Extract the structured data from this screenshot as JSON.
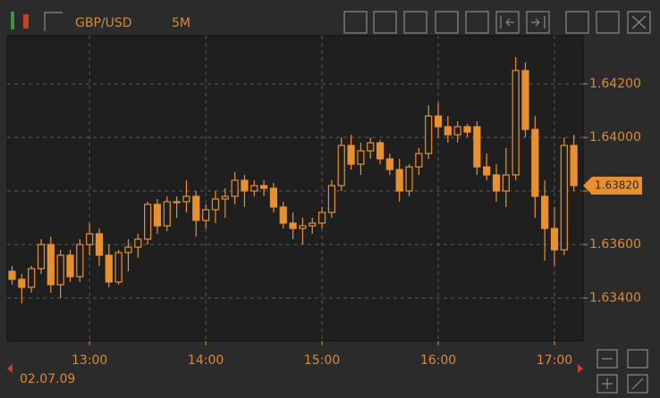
{
  "chart_data": {
    "type": "candlestick",
    "title": "GBP/USD",
    "timeframe": "5M",
    "date": "02.07.09",
    "color": "#e8902e",
    "x": [
      "12:20",
      "12:25",
      "12:30",
      "12:35",
      "12:40",
      "12:45",
      "12:50",
      "12:55",
      "13:00",
      "13:05",
      "13:10",
      "13:15",
      "13:20",
      "13:25",
      "13:30",
      "13:35",
      "13:40",
      "13:45",
      "13:50",
      "13:55",
      "14:00",
      "14:05",
      "14:10",
      "14:15",
      "14:20",
      "14:25",
      "14:30",
      "14:35",
      "14:40",
      "14:45",
      "14:50",
      "14:55",
      "15:00",
      "15:05",
      "15:10",
      "15:15",
      "15:20",
      "15:25",
      "15:30",
      "15:35",
      "15:40",
      "15:45",
      "15:50",
      "15:55",
      "16:00",
      "16:05",
      "16:10",
      "16:15",
      "16:20",
      "16:25",
      "16:30",
      "16:35",
      "16:40",
      "16:45",
      "16:50",
      "16:55",
      "17:00",
      "17:05",
      "17:10"
    ],
    "open": [
      1.635,
      1.6347,
      1.6344,
      1.6351,
      1.636,
      1.6345,
      1.6356,
      1.6348,
      1.636,
      1.6364,
      1.6356,
      1.6346,
      1.6357,
      1.6359,
      1.6362,
      1.6375,
      1.6367,
      1.6376,
      1.6376,
      1.6378,
      1.6369,
      1.6373,
      1.6377,
      1.6378,
      1.6384,
      1.638,
      1.6382,
      1.6381,
      1.6374,
      1.6368,
      1.6366,
      1.6367,
      1.6368,
      1.6372,
      1.6382,
      1.6397,
      1.639,
      1.6395,
      1.6398,
      1.6392,
      1.6388,
      1.638,
      1.6389,
      1.6394,
      1.6408,
      1.6404,
      1.6401,
      1.6404,
      1.6404,
      1.6389,
      1.6386,
      1.638,
      1.6386,
      1.6425,
      1.6403,
      1.6378,
      1.6366,
      1.6358,
      1.6397
    ],
    "high": [
      1.6352,
      1.6349,
      1.6352,
      1.6362,
      1.6363,
      1.6358,
      1.6358,
      1.6362,
      1.6368,
      1.6366,
      1.636,
      1.6358,
      1.6362,
      1.6364,
      1.6376,
      1.6377,
      1.6378,
      1.6378,
      1.6384,
      1.638,
      1.6375,
      1.638,
      1.6381,
      1.6387,
      1.6386,
      1.6384,
      1.6384,
      1.6383,
      1.6376,
      1.6372,
      1.637,
      1.637,
      1.6374,
      1.6384,
      1.64,
      1.6401,
      1.6398,
      1.64,
      1.6399,
      1.6394,
      1.6392,
      1.639,
      1.6396,
      1.6412,
      1.6413,
      1.6408,
      1.6406,
      1.6405,
      1.6406,
      1.6394,
      1.639,
      1.6396,
      1.643,
      1.6428,
      1.6408,
      1.6384,
      1.6374,
      1.64,
      1.6401
    ],
    "low": [
      1.6345,
      1.6338,
      1.6342,
      1.6349,
      1.6342,
      1.634,
      1.6346,
      1.6346,
      1.6356,
      1.6352,
      1.6344,
      1.6345,
      1.635,
      1.6355,
      1.636,
      1.6364,
      1.6365,
      1.637,
      1.6372,
      1.6363,
      1.6366,
      1.6368,
      1.637,
      1.6375,
      1.6374,
      1.6378,
      1.6378,
      1.6372,
      1.6366,
      1.6362,
      1.636,
      1.6364,
      1.6366,
      1.637,
      1.638,
      1.6388,
      1.6386,
      1.6392,
      1.639,
      1.6386,
      1.6376,
      1.6378,
      1.6386,
      1.6392,
      1.64,
      1.6398,
      1.6398,
      1.64,
      1.6386,
      1.6384,
      1.6376,
      1.6374,
      1.6384,
      1.64,
      1.637,
      1.6354,
      1.6352,
      1.6356,
      1.638
    ],
    "close": [
      1.6347,
      1.6344,
      1.6351,
      1.636,
      1.6345,
      1.6356,
      1.6348,
      1.636,
      1.6364,
      1.6356,
      1.6346,
      1.6357,
      1.6359,
      1.6362,
      1.6375,
      1.6367,
      1.6376,
      1.6376,
      1.6378,
      1.6369,
      1.6373,
      1.6377,
      1.6378,
      1.6384,
      1.638,
      1.6382,
      1.6381,
      1.6374,
      1.6368,
      1.6366,
      1.6367,
      1.6368,
      1.6372,
      1.6382,
      1.6397,
      1.639,
      1.6395,
      1.6398,
      1.6392,
      1.6388,
      1.638,
      1.6389,
      1.6394,
      1.6408,
      1.6404,
      1.6401,
      1.6404,
      1.6402,
      1.6389,
      1.6386,
      1.638,
      1.6386,
      1.6425,
      1.6403,
      1.6378,
      1.6366,
      1.6358,
      1.6397,
      1.6382
    ],
    "xticks": [
      "13:00",
      "14:00",
      "15:00",
      "16:00",
      "17:00"
    ],
    "ylim": [
      1.6324,
      1.6438
    ],
    "yticks": [
      {
        "value": 1.634,
        "label": "1.63400"
      },
      {
        "value": 1.636,
        "label": "1.63600"
      },
      {
        "value": 1.638,
        "label": "1.63800"
      },
      {
        "value": 1.64,
        "label": "1.64000"
      },
      {
        "value": 1.642,
        "label": "1.64200"
      }
    ],
    "current_price": {
      "value": 1.6382,
      "label": "1.63820"
    },
    "grid": true
  }
}
